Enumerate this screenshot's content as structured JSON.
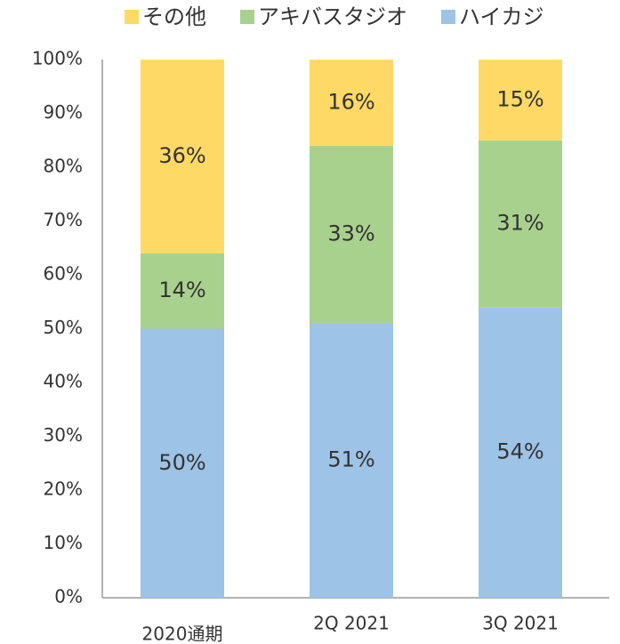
{
  "chart_data": {
    "type": "bar",
    "stacked": true,
    "categories": [
      "2020通期",
      "2Q 2021",
      "3Q 2021"
    ],
    "series": [
      {
        "name": "その他",
        "color": "#FFD966",
        "values": [
          36,
          16,
          15
        ],
        "value_labels": [
          "36%",
          "16%",
          "15%"
        ]
      },
      {
        "name": "アキバスタジオ",
        "color": "#A9D18E",
        "values": [
          14,
          33,
          31
        ],
        "value_labels": [
          "14%",
          "33%",
          "31%"
        ]
      },
      {
        "name": "ハイカジ",
        "color": "#9DC3E6",
        "values": [
          50,
          51,
          54
        ],
        "value_labels": [
          "50%",
          "51%",
          "54%"
        ]
      }
    ],
    "ylim": [
      0,
      100
    ],
    "yticks": [
      {
        "value": 0,
        "label": "0%"
      },
      {
        "value": 10,
        "label": "10%"
      },
      {
        "value": 20,
        "label": "20%"
      },
      {
        "value": 30,
        "label": "30%"
      },
      {
        "value": 40,
        "label": "40%"
      },
      {
        "value": 50,
        "label": "50%"
      },
      {
        "value": 60,
        "label": "60%"
      },
      {
        "value": 70,
        "label": "70%"
      },
      {
        "value": 80,
        "label": "80%"
      },
      {
        "value": 90,
        "label": "90%"
      },
      {
        "value": 100,
        "label": "100%"
      }
    ],
    "legend": "top",
    "grid": false
  }
}
